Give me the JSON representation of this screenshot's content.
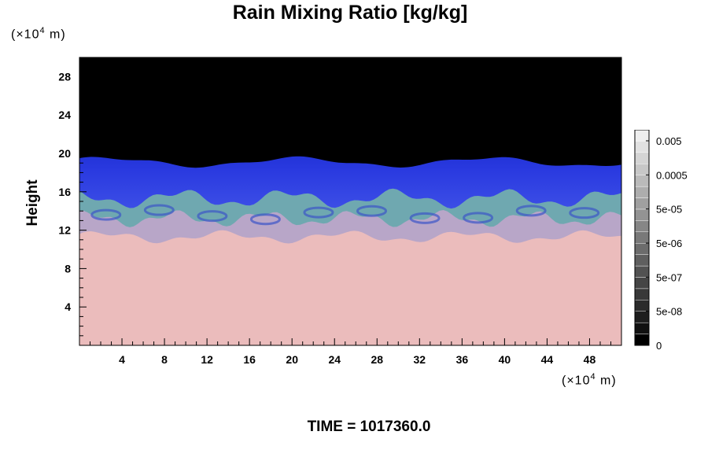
{
  "chart_data": {
    "type": "heatmap",
    "title": "Rain Mixing Ratio [kg/kg]",
    "ylabel": "Height",
    "xlabel": "",
    "x_unit": "(×10",
    "x_unit_exp": "4",
    "x_unit_tail": " m)",
    "y_unit": "(×10",
    "y_unit_exp": "4",
    "y_unit_tail": " m)",
    "xlim": [
      0,
      51
    ],
    "ylim": [
      0,
      30
    ],
    "x_ticks": [
      "4",
      "8",
      "12",
      "16",
      "20",
      "24",
      "28",
      "32",
      "36",
      "40",
      "44",
      "48"
    ],
    "y_ticks": [
      "4",
      "8",
      "12",
      "16",
      "20",
      "24",
      "28"
    ],
    "colorbar": {
      "labels": [
        "0.005",
        "0.0005",
        "5e-05",
        "5e-06",
        "5e-07",
        "5e-08",
        "0"
      ],
      "colors": [
        "#000000",
        "#111111",
        "#1e1e1e",
        "#2b2b2b",
        "#383838",
        "#454545",
        "#525252",
        "#5f5f5f",
        "#6c6c6c",
        "#797979",
        "#868686",
        "#939393",
        "#a0a0a0",
        "#adadad",
        "#bababa",
        "#c7c7c7",
        "#d4d4d4",
        "#e1e1e1",
        "#eeeeee"
      ]
    },
    "layers": [
      {
        "name": "pink",
        "color": "#ebbcbc",
        "top": 11.0
      },
      {
        "name": "lavender",
        "color": "#b8a6c8",
        "top": 13.0
      },
      {
        "name": "teal",
        "color": "#6fa8b0",
        "top": 15.0
      },
      {
        "name": "blue",
        "color": "#1a2ad4",
        "top": 19.5
      },
      {
        "name": "black",
        "color": "#000000",
        "top": 30.0
      }
    ]
  },
  "footer": {
    "time_label": "TIME = 1017360.0"
  }
}
